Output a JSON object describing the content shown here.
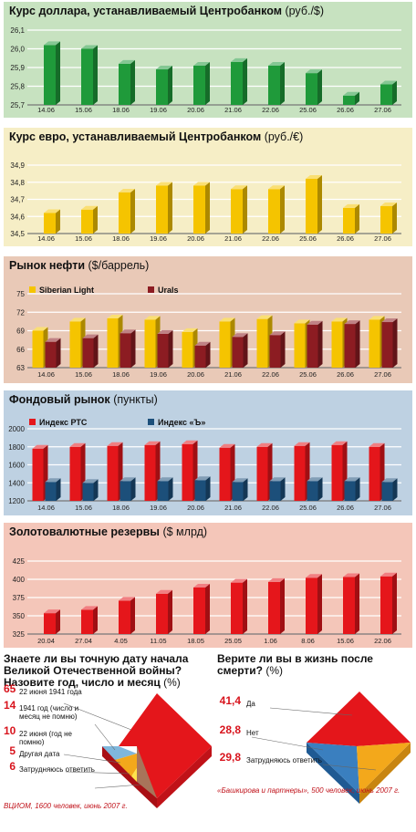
{
  "chart_data": [
    {
      "type": "bar",
      "title": "Курс доллара, устанавливаемый Центробанком",
      "unit": "(руб./$)",
      "categories": [
        "14.06",
        "15.06",
        "18.06",
        "19.06",
        "20.06",
        "21.06",
        "22.06",
        "25.06",
        "26.06",
        "27.06"
      ],
      "values": [
        26.02,
        26.0,
        25.92,
        25.89,
        25.91,
        25.93,
        25.91,
        25.87,
        25.75,
        25.81
      ],
      "yticks": [
        "25,7",
        "25,8",
        "25,9",
        "26,0",
        "26,1"
      ],
      "ylim": [
        25.7,
        26.1
      ],
      "colors": {
        "bar": "#1f9a3a",
        "background": "#c7e2c0"
      }
    },
    {
      "type": "bar",
      "title": "Курс евро, устанавливаемый Центробанком",
      "unit": "(руб./€)",
      "categories": [
        "14.06",
        "15.06",
        "18.06",
        "19.06",
        "20.06",
        "21.06",
        "22.06",
        "25.06",
        "26.06",
        "27.06"
      ],
      "values": [
        34.62,
        34.64,
        34.74,
        34.78,
        34.78,
        34.76,
        34.76,
        34.82,
        34.65,
        34.66
      ],
      "yticks": [
        "34,5",
        "34,6",
        "34,7",
        "34,8",
        "34,9"
      ],
      "ylim": [
        34.5,
        34.9
      ],
      "colors": {
        "bar": "#f5c400",
        "background": "#f6eec6"
      }
    },
    {
      "type": "bar",
      "title": "Рынок нефти",
      "unit": "($/баррель)",
      "categories": [
        "14.06",
        "15.06",
        "18.06",
        "19.06",
        "20.06",
        "21.06",
        "22.06",
        "25.06",
        "26.06",
        "27.06"
      ],
      "series": [
        {
          "name": "Siberian Light",
          "values": [
            69.0,
            70.5,
            71.0,
            70.8,
            68.8,
            70.5,
            70.9,
            70.2,
            70.5,
            70.8
          ]
        },
        {
          "name": "Urals",
          "values": [
            67.2,
            67.8,
            68.6,
            68.5,
            66.6,
            68.0,
            68.3,
            70.0,
            70.1,
            70.4
          ]
        }
      ],
      "yticks": [
        "63",
        "66",
        "69",
        "72",
        "75"
      ],
      "ylim": [
        63,
        75
      ],
      "colors": {
        "series": [
          "#f5c400",
          "#8c1c22"
        ],
        "background": "#e9c9b7"
      }
    },
    {
      "type": "bar",
      "title": "Фондовый рынок",
      "unit": "(пункты)",
      "categories": [
        "14.06",
        "15.06",
        "18.06",
        "19.06",
        "20.06",
        "21.06",
        "22.06",
        "25.06",
        "26.06",
        "27.06"
      ],
      "series": [
        {
          "name": "Индекс РТС",
          "values": [
            1780,
            1800,
            1810,
            1820,
            1830,
            1790,
            1800,
            1810,
            1820,
            1800
          ]
        },
        {
          "name": "Индекс «Ъ»",
          "values": [
            1410,
            1400,
            1420,
            1420,
            1430,
            1410,
            1420,
            1420,
            1420,
            1410
          ]
        }
      ],
      "yticks": [
        "1200",
        "1400",
        "1600",
        "1800",
        "2000"
      ],
      "ylim": [
        1200,
        2000
      ],
      "colors": {
        "series": [
          "#e4161b",
          "#1c4f7a"
        ],
        "background": "#bed1e2"
      }
    },
    {
      "type": "bar",
      "title": "Золотовалютные резервы",
      "unit": "($ млрд)",
      "categories": [
        "20.04",
        "27.04",
        "4.05",
        "11.05",
        "18.05",
        "25.05",
        "1.06",
        "8.06",
        "15.06",
        "22.06"
      ],
      "values": [
        350,
        355,
        368,
        378,
        387,
        394,
        395,
        401,
        402,
        403
      ],
      "yticks": [
        "325",
        "350",
        "375",
        "400",
        "425"
      ],
      "ylim": [
        320,
        425
      ],
      "colors": {
        "bar": "#e5161b",
        "background": "#f4c6b9"
      }
    }
  ],
  "poll1": {
    "question": "Знаете ли вы точную дату начала Великой Отечественной войны? Назовите год, число и месяц",
    "unit": "(%)",
    "answers": [
      {
        "value": "65",
        "label": "22 июня 1941 года",
        "color": "#e4161b"
      },
      {
        "value": "14",
        "label": "1941 год (число и месяц не помню)",
        "color": "#7fb7dc"
      },
      {
        "value": "10",
        "label": "22 июня (год не помню)",
        "color": "#f3a81b"
      },
      {
        "value": "5",
        "label": "Другая дата",
        "color": "#ffe24a"
      },
      {
        "value": "6",
        "label": "Затрудняюсь ответить",
        "color": "#a8745a"
      }
    ],
    "source": "ВЦИОМ, 1600 человек, июнь 2007 г."
  },
  "poll2": {
    "question": "Верите ли вы в жизнь после смерти?",
    "unit": "(%)",
    "answers": [
      {
        "value": "41,4",
        "label": "Да",
        "color": "#e4161b"
      },
      {
        "value": "28,8",
        "label": "Нет",
        "color": "#3a7fbf"
      },
      {
        "value": "29,8",
        "label": "Затрудняюсь ответить",
        "color": "#f3a81b"
      }
    ],
    "source": "«Башкирова и партнеры», 500 человек, июнь 2007 г."
  }
}
